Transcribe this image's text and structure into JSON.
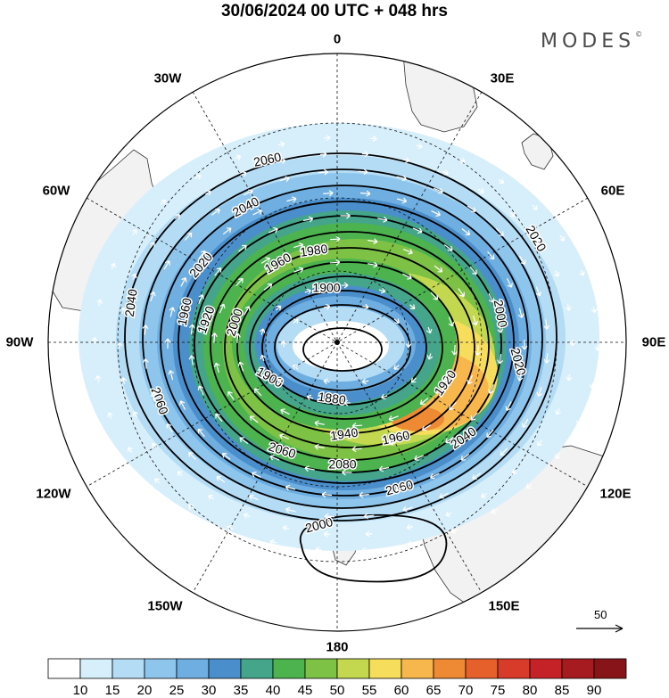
{
  "header": {
    "title": "30/06/2024  00 UTC  + 048 hrs",
    "brand": "MODES",
    "brand_mark": "©"
  },
  "map": {
    "projection": "south polar stereographic",
    "longitude_labels": {
      "top": "0",
      "top_right": "30E",
      "right_upper": "60E",
      "right": "90E",
      "right_lower": "120E",
      "bottom_right": "150E",
      "bottom": "180",
      "bottom_left": "150W",
      "left_lower": "120W",
      "left": "90W",
      "left_upper": "60W",
      "top_left": "30W"
    },
    "contour_interval": 20,
    "contour_labels": [
      "2060",
      "2040",
      "2020",
      "1960",
      "1980",
      "1900",
      "1920",
      "2000",
      "1960",
      "1900",
      "1880",
      "1940",
      "1960",
      "1920",
      "2000",
      "2020",
      "2040",
      "2060",
      "2080",
      "2060",
      "2000",
      "2020",
      "2040",
      "2060"
    ],
    "reference_vector_value": "50",
    "colors": {
      "land": "#f2f2f2",
      "ocean": "#ffffff",
      "contour": "#000000",
      "vector": "#ffffff"
    }
  },
  "colorbar": {
    "labels": [
      "10",
      "15",
      "20",
      "25",
      "30",
      "35",
      "40",
      "45",
      "50",
      "55",
      "60",
      "65",
      "70",
      "75",
      "80",
      "85",
      "90"
    ],
    "colors": [
      "#ffffff",
      "#d7effb",
      "#b4dcf5",
      "#8ec5ec",
      "#6eaee1",
      "#4a8fcb",
      "#44a58b",
      "#4cb34e",
      "#7ec245",
      "#c3d84f",
      "#f6de5c",
      "#f7b74c",
      "#ef8a34",
      "#e6602c",
      "#d83b2a",
      "#c42227",
      "#a51b1f",
      "#861419"
    ]
  }
}
